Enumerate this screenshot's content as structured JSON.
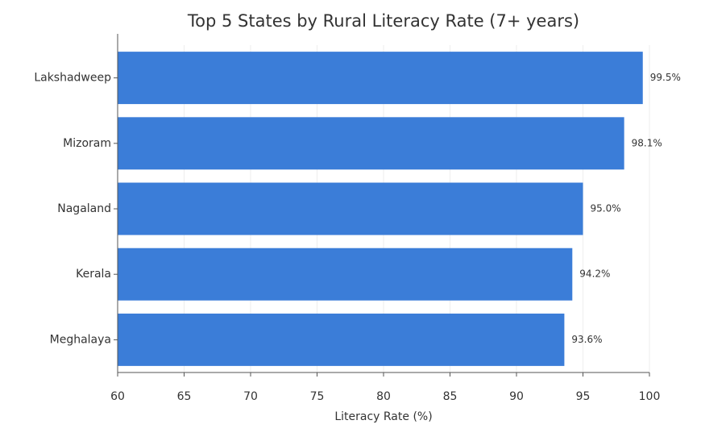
{
  "chart_data": {
    "type": "hbar",
    "title": "Top 5 States by Rural Literacy Rate (7+ years)",
    "x_label": "Literacy Rate (%)",
    "categories": [
      "Lakshadweep",
      "Mizoram",
      "Nagaland",
      "Kerala",
      "Meghalaya"
    ],
    "values": [
      99.5,
      98.1,
      95.0,
      94.2,
      93.6
    ],
    "value_labels": [
      "99.5%",
      "98.1%",
      "95.0%",
      "94.2%",
      "93.6%"
    ],
    "color": "#3b7dd8",
    "xlim": [
      60,
      100
    ],
    "xticks": [
      60,
      65,
      70,
      75,
      80,
      85,
      90,
      95,
      100
    ],
    "grid": true
  }
}
